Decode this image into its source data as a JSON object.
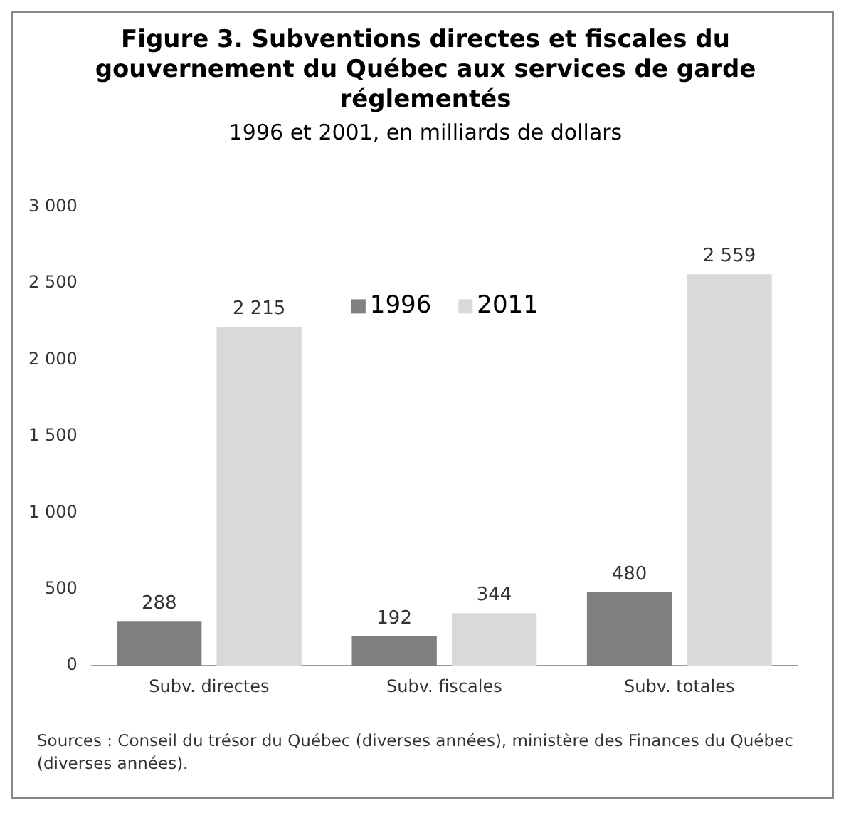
{
  "chart_data": {
    "type": "bar",
    "title": "Figure 3. Subventions directes et fiscales du gouvernement du Québec aux services de garde réglementés",
    "subtitle": "1996 et 2001, en milliards de dollars",
    "categories": [
      "Subv. directes",
      "Subv. fiscales",
      "Subv. totales"
    ],
    "series": [
      {
        "name": "1996",
        "color": "#808080",
        "values": [
          288,
          192,
          480
        ],
        "value_labels": [
          "288",
          "192",
          "480"
        ]
      },
      {
        "name": "2011",
        "color": "#d9d9d9",
        "values": [
          2215,
          344,
          2559
        ],
        "value_labels": [
          "2 215",
          "344",
          "2 559"
        ]
      }
    ],
    "ylim": [
      0,
      3000
    ],
    "yticks": [
      0,
      500,
      {
        "value": 1000,
        "label": "1 000"
      },
      {
        "value": 1500,
        "label": "1 500"
      },
      {
        "value": 2000,
        "label": "2 000"
      },
      {
        "value": 2500,
        "label": "2 500"
      },
      {
        "value": 3000,
        "label": "3 000"
      }
    ],
    "grid": false,
    "legend": "top",
    "annotations": [
      "Sources : Conseil du trésor du Québec (diverses années), ministère des Finances du Québec (diverses années)."
    ]
  }
}
